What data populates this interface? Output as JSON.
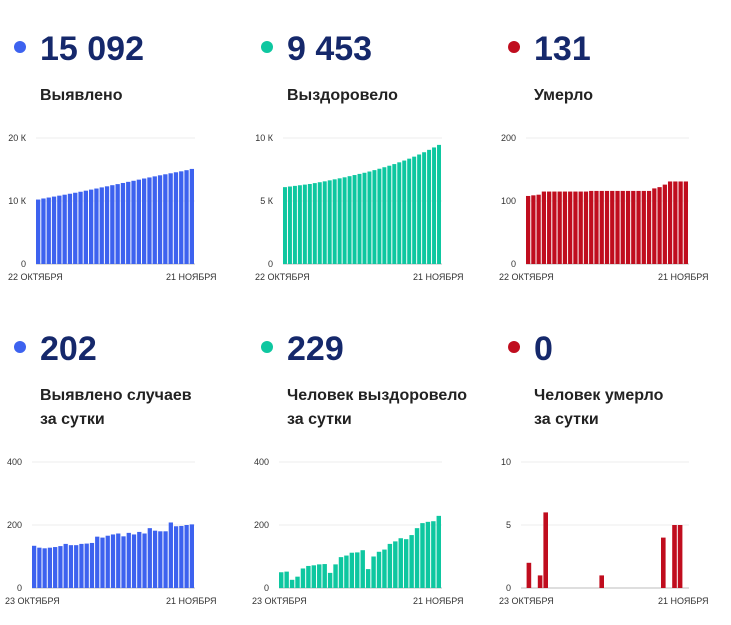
{
  "colors": {
    "blue": "#3d62ef",
    "green": "#0ec7a0",
    "red": "#c00d1e",
    "number": "#15286b"
  },
  "stats": [
    {
      "value": "15 092",
      "label": [
        "Выявлено"
      ],
      "color": "#3d62ef"
    },
    {
      "value": "9 453",
      "label": [
        "Выздоровело"
      ],
      "color": "#0ec7a0"
    },
    {
      "value": "131",
      "label": [
        "Умерло"
      ],
      "color": "#c00d1e"
    },
    {
      "value": "202",
      "label": [
        "Выявлено случаев",
        "за сутки"
      ],
      "color": "#3d62ef"
    },
    {
      "value": "229",
      "label": [
        "Человек выздоровело",
        "за сутки"
      ],
      "color": "#0ec7a0"
    },
    {
      "value": "0",
      "label": [
        "Человек умерло",
        "за сутки"
      ],
      "color": "#c00d1e"
    }
  ],
  "chart_data": [
    {
      "type": "bar",
      "grid": true,
      "color": "#3d62ef",
      "x_start_label": "22 ОКТЯБРЯ",
      "x_end_label": "21 НОЯБРЯ",
      "yticks": [
        0,
        10000,
        20000
      ],
      "ytick_labels": [
        "0",
        "10 К",
        "20 К"
      ],
      "ylim": [
        0,
        20000
      ],
      "values": [
        10230,
        10400,
        10550,
        10700,
        10850,
        11000,
        11150,
        11310,
        11470,
        11640,
        11810,
        11980,
        12160,
        12330,
        12510,
        12680,
        12860,
        13040,
        13210,
        13390,
        13570,
        13740,
        13910,
        14080,
        14240,
        14400,
        14560,
        14710,
        14890,
        15092
      ]
    },
    {
      "type": "bar",
      "grid": true,
      "color": "#0ec7a0",
      "x_start_label": "22 ОКТЯБРЯ",
      "x_end_label": "21 НОЯБРЯ",
      "yticks": [
        0,
        5000,
        10000
      ],
      "ytick_labels": [
        "0",
        "5 К",
        "10 К"
      ],
      "ylim": [
        0,
        10000
      ],
      "values": [
        6100,
        6150,
        6200,
        6250,
        6300,
        6350,
        6420,
        6490,
        6560,
        6640,
        6720,
        6800,
        6880,
        6970,
        7060,
        7150,
        7240,
        7340,
        7450,
        7560,
        7680,
        7800,
        7930,
        8070,
        8210,
        8360,
        8520,
        8690,
        8870,
        9060,
        9250,
        9453
      ]
    },
    {
      "type": "bar",
      "grid": true,
      "color": "#c00d1e",
      "x_start_label": "22 ОКТЯБРЯ",
      "x_end_label": "21 НОЯБРЯ",
      "yticks": [
        0,
        100,
        200
      ],
      "ytick_labels": [
        "0",
        "100",
        "200"
      ],
      "ylim": [
        0,
        200
      ],
      "values": [
        108,
        109,
        110,
        115,
        115,
        115,
        115,
        115,
        115,
        115,
        115,
        115,
        116,
        116,
        116,
        116,
        116,
        116,
        116,
        116,
        116,
        116,
        116,
        116,
        120,
        122,
        126,
        131,
        131,
        131,
        131
      ]
    },
    {
      "type": "bar",
      "grid": true,
      "color": "#3d62ef",
      "x_start_label": "23 ОКТЯБРЯ",
      "x_end_label": "21 НОЯБРЯ",
      "yticks": [
        0,
        200,
        400
      ],
      "ytick_labels": [
        "0",
        "200",
        "400"
      ],
      "ylim": [
        0,
        400
      ],
      "values": [
        134,
        128,
        126,
        128,
        130,
        133,
        140,
        136,
        136,
        140,
        141,
        143,
        163,
        160,
        166,
        170,
        173,
        164,
        175,
        170,
        178,
        173,
        190,
        182,
        180,
        180,
        208,
        196,
        197,
        200,
        202
      ]
    },
    {
      "type": "bar",
      "grid": true,
      "color": "#0ec7a0",
      "x_start_label": "23 ОКТЯБРЯ",
      "x_end_label": "21 НОЯБРЯ",
      "yticks": [
        0,
        200,
        400
      ],
      "ytick_labels": [
        "0",
        "200",
        "400"
      ],
      "ylim": [
        0,
        400
      ],
      "values": [
        50,
        52,
        26,
        36,
        62,
        70,
        72,
        75,
        76,
        48,
        75,
        98,
        103,
        112,
        113,
        120,
        60,
        100,
        115,
        122,
        140,
        148,
        158,
        155,
        168,
        190,
        206,
        210,
        212,
        229
      ]
    },
    {
      "type": "bar",
      "grid": true,
      "color": "#c00d1e",
      "x_start_label": "23 ОКТЯБРЯ",
      "x_end_label": "21 НОЯБРЯ",
      "yticks": [
        0,
        5,
        10
      ],
      "ytick_labels": [
        "0",
        "5",
        "10"
      ],
      "ylim": [
        0,
        10
      ],
      "values": [
        0,
        2,
        0,
        1,
        6,
        0,
        0,
        0,
        0,
        0,
        0,
        0,
        0,
        0,
        1,
        0,
        0,
        0,
        0,
        0,
        0,
        0,
        0,
        0,
        0,
        4,
        0,
        5,
        5,
        0
      ]
    }
  ]
}
